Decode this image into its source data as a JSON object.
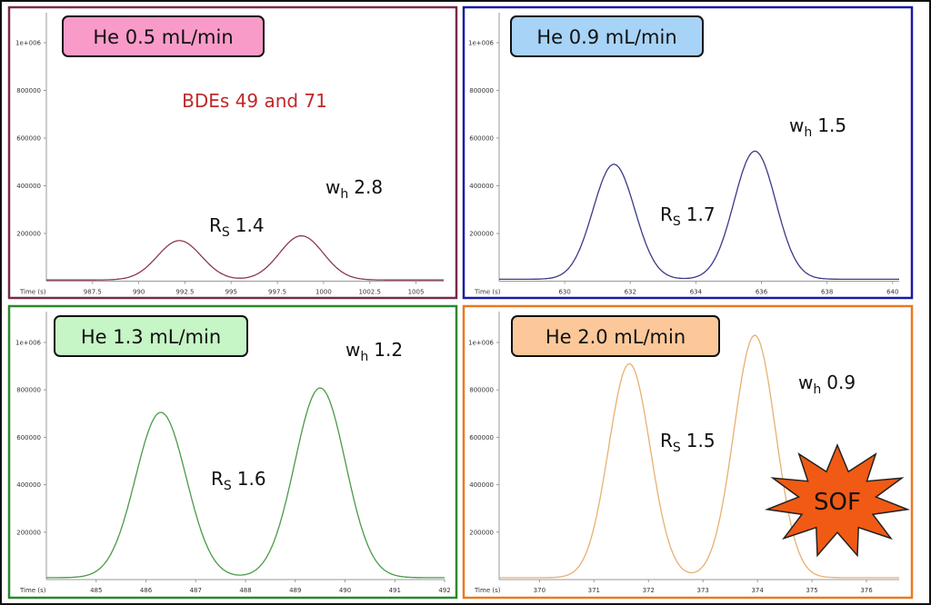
{
  "chart_data": [
    {
      "type": "line",
      "label": "He 0.5 mL/min",
      "label_color": "#f99bc9",
      "frame_color": "#7a2a4a",
      "line_color": "#8a3a4a",
      "xlabel": "Time (s)",
      "xlim": [
        985,
        1006.5
      ],
      "ylim": [
        0,
        1100000
      ],
      "xticks": [
        "987.5",
        "990",
        "992.5",
        "995",
        "997.5",
        "1000",
        "1002.5",
        "1005"
      ],
      "yticks": [
        "200000",
        "400000",
        "600000",
        "800000",
        "1e+006"
      ],
      "peaks": [
        {
          "x": 992.2,
          "y": 170000
        },
        {
          "x": 998.8,
          "y": 190000
        }
      ],
      "baseline": 5000,
      "wh": 2.8,
      "annotations": {
        "title": "BDEs 49 and 71",
        "title_color": "#c0282a",
        "rs": "1.4",
        "wh": "2.8"
      }
    },
    {
      "type": "line",
      "label": "He 0.9 mL/min",
      "label_color": "#a7d3f7",
      "frame_color": "#1a1aa8",
      "line_color": "#3a3a8a",
      "xlabel": "Time (s)",
      "xlim": [
        628,
        640.2
      ],
      "ylim": [
        0,
        1100000
      ],
      "xticks": [
        "630",
        "632",
        "634",
        "636",
        "638",
        "640"
      ],
      "yticks": [
        "200000",
        "400000",
        "600000",
        "800000",
        "1e+006"
      ],
      "peaks": [
        {
          "x": 631.5,
          "y": 490000
        },
        {
          "x": 635.8,
          "y": 545000
        }
      ],
      "baseline": 8000,
      "wh": 1.5,
      "annotations": {
        "rs": "1.7",
        "wh": "1.5"
      }
    },
    {
      "type": "line",
      "label": "He 1.3 mL/min",
      "label_color": "#c6f5c6",
      "frame_color": "#2a8a2a",
      "line_color": "#4a9a4a",
      "xlabel": "Time (s)",
      "xlim": [
        484,
        492
      ],
      "ylim": [
        0,
        1100000
      ],
      "xticks": [
        "485",
        "486",
        "487",
        "488",
        "489",
        "490",
        "491",
        "492"
      ],
      "yticks": [
        "200000",
        "400000",
        "600000",
        "800000",
        "1e+006"
      ],
      "peaks": [
        {
          "x": 486.3,
          "y": 705000
        },
        {
          "x": 489.5,
          "y": 808000
        }
      ],
      "baseline": 8000,
      "wh": 1.2,
      "annotations": {
        "rs": "1.6",
        "wh": "1.2"
      }
    },
    {
      "type": "line",
      "label": "He 2.0 mL/min",
      "label_color": "#fcc89a",
      "frame_color": "#e87a20",
      "line_color": "#e8b070",
      "xlabel": "Time (s)",
      "xlim": [
        369.26,
        376.6
      ],
      "ylim": [
        0,
        1100000
      ],
      "xticks": [
        "370",
        "371",
        "372",
        "373",
        "374",
        "375",
        "376"
      ],
      "yticks": [
        "200000",
        "400000",
        "600000",
        "800000",
        "1e+006"
      ],
      "peaks": [
        {
          "x": 371.65,
          "y": 910000
        },
        {
          "x": 373.95,
          "y": 1030000
        }
      ],
      "baseline": 8000,
      "wh": 0.9,
      "annotations": {
        "rs": "1.5",
        "wh": "0.9",
        "badge": "SOF",
        "badge_color": "#f05a14"
      }
    }
  ]
}
